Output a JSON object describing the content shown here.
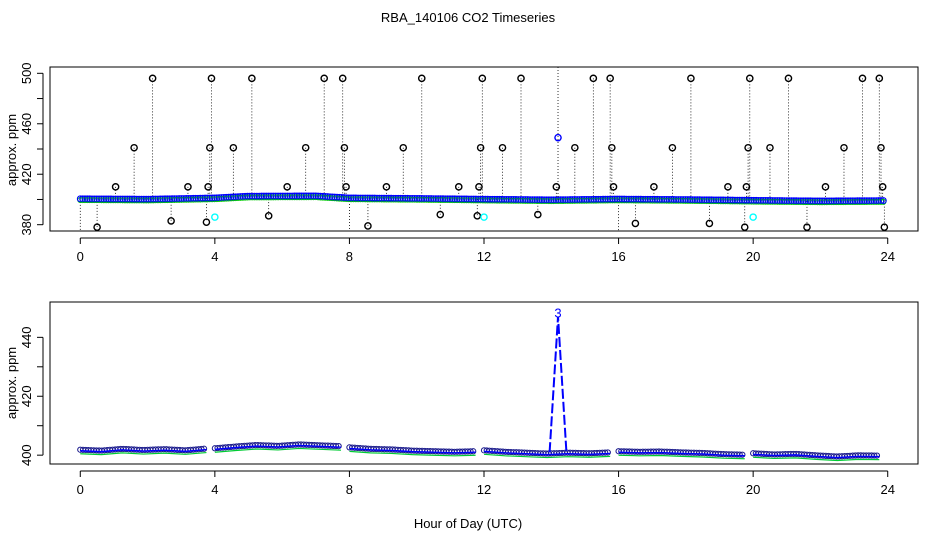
{
  "chart_data": {
    "title": "RBA_140106  CO2 Timeseries",
    "xlabel": "Hour of Day (UTC)",
    "panels": [
      {
        "type": "scatter",
        "ylabel": "approx. ppm",
        "xlim": [
          -0.9,
          24.9
        ],
        "ylim": [
          375,
          505
        ],
        "x_ticks": [
          "0",
          "4",
          "8",
          "12",
          "16",
          "20",
          "24"
        ],
        "x_tick_values": [
          0,
          4,
          8,
          12,
          16,
          20,
          24
        ],
        "y_ticks": [
          "380",
          "420",
          "460",
          "500"
        ],
        "y_tick_values": [
          380,
          420,
          460,
          500
        ],
        "y_minor_ticks": [
          400,
          440,
          480
        ],
        "baseline": [
          [
            0,
            400.5
          ],
          [
            2,
            400.2
          ],
          [
            4,
            401.2
          ],
          [
            5,
            402.6
          ],
          [
            7,
            402.8
          ],
          [
            8,
            401.2
          ],
          [
            10,
            400.8
          ],
          [
            12,
            400.2
          ],
          [
            14,
            399.7
          ],
          [
            16,
            400.3
          ],
          [
            18,
            399.9
          ],
          [
            20,
            399.3
          ],
          [
            22,
            398.8
          ],
          [
            23.9,
            399.1
          ]
        ],
        "spikes": [
          [
            0.5,
            378
          ],
          [
            1.05,
            410
          ],
          [
            1.6,
            441
          ],
          [
            2.15,
            496
          ],
          [
            2.7,
            383
          ],
          [
            3.2,
            410
          ],
          [
            3.75,
            382
          ],
          [
            3.8,
            410
          ],
          [
            3.85,
            441
          ],
          [
            3.9,
            496
          ],
          [
            4.55,
            441
          ],
          [
            5.1,
            496
          ],
          [
            5.6,
            387
          ],
          [
            6.15,
            410
          ],
          [
            6.7,
            441
          ],
          [
            7.25,
            496
          ],
          [
            7.8,
            496
          ],
          [
            7.85,
            441
          ],
          [
            7.9,
            410
          ],
          [
            8.55,
            379
          ],
          [
            9.1,
            410
          ],
          [
            9.6,
            441
          ],
          [
            10.15,
            496
          ],
          [
            10.7,
            388
          ],
          [
            11.25,
            410
          ],
          [
            11.8,
            387
          ],
          [
            11.85,
            410
          ],
          [
            11.9,
            441
          ],
          [
            11.95,
            496
          ],
          [
            12.55,
            441
          ],
          [
            13.1,
            496
          ],
          [
            13.6,
            388
          ],
          [
            14.15,
            410
          ],
          [
            14.7,
            441
          ],
          [
            15.25,
            496
          ],
          [
            15.75,
            496
          ],
          [
            15.8,
            441
          ],
          [
            15.85,
            410
          ],
          [
            16.5,
            381
          ],
          [
            17.05,
            410
          ],
          [
            17.6,
            441
          ],
          [
            18.15,
            496
          ],
          [
            18.7,
            381
          ],
          [
            19.25,
            410
          ],
          [
            19.75,
            378
          ],
          [
            19.8,
            410
          ],
          [
            19.85,
            441
          ],
          [
            19.9,
            496
          ],
          [
            20.5,
            441
          ],
          [
            21.05,
            496
          ],
          [
            21.6,
            378
          ],
          [
            22.15,
            410
          ],
          [
            22.7,
            441
          ],
          [
            23.25,
            496
          ],
          [
            23.75,
            496
          ],
          [
            23.8,
            441
          ],
          [
            23.85,
            410
          ],
          [
            23.9,
            378
          ]
        ],
        "blue_point": [
          14.2,
          449
        ],
        "cyan_points": [
          [
            4.0,
            386
          ],
          [
            12.0,
            386
          ],
          [
            20.0,
            386
          ]
        ]
      },
      {
        "type": "line",
        "ylabel": "approx. ppm",
        "xlim": [
          -0.9,
          24.9
        ],
        "ylim": [
          397,
          452
        ],
        "x_ticks": [
          "0",
          "4",
          "8",
          "12",
          "16",
          "20",
          "24"
        ],
        "x_tick_values": [
          0,
          4,
          8,
          12,
          16,
          20,
          24
        ],
        "y_ticks": [
          "400",
          "420",
          "440"
        ],
        "y_tick_values": [
          400,
          420,
          440
        ],
        "y_minor_ticks": [
          410,
          430
        ],
        "segments": [
          {
            "start": 0.0,
            "end": 3.75,
            "values": [
              401.5,
              401.2,
              401.8,
              401.4,
              401.7,
              401.3,
              401.9
            ]
          },
          {
            "start": 4.0,
            "end": 7.75,
            "values": [
              402.0,
              402.6,
              403.1,
              402.8,
              403.3,
              403.0,
              402.7
            ]
          },
          {
            "start": 8.0,
            "end": 11.75,
            "values": [
              402.3,
              401.8,
              401.6,
              401.2,
              401.0,
              400.8,
              401.0
            ]
          },
          {
            "start": 12.0,
            "end": 15.75,
            "values": [
              401.3,
              400.8,
              400.5,
              400.2,
              400.5,
              400.3,
              400.6
            ]
          },
          {
            "start": 16.0,
            "end": 19.75,
            "values": [
              401.0,
              400.8,
              400.9,
              400.6,
              400.4,
              400.0,
              399.8
            ]
          },
          {
            "start": 20.0,
            "end": 23.75,
            "values": [
              400.3,
              399.9,
              400.1,
              399.6,
              399.2,
              399.6,
              399.5
            ]
          }
        ],
        "spike": {
          "x": [
            13.95,
            14.2,
            14.45
          ],
          "y": [
            401,
            447,
            401
          ]
        },
        "spike_label": "3"
      }
    ]
  },
  "colors": {
    "axis": "#000000",
    "spike_points": "#000000",
    "baseline_points": "#0000ff",
    "baseline_secondary": "#00cc00",
    "cyan_points": "#00ffff",
    "segment_line": "#0000ff",
    "segment_green": "#00cc33"
  }
}
